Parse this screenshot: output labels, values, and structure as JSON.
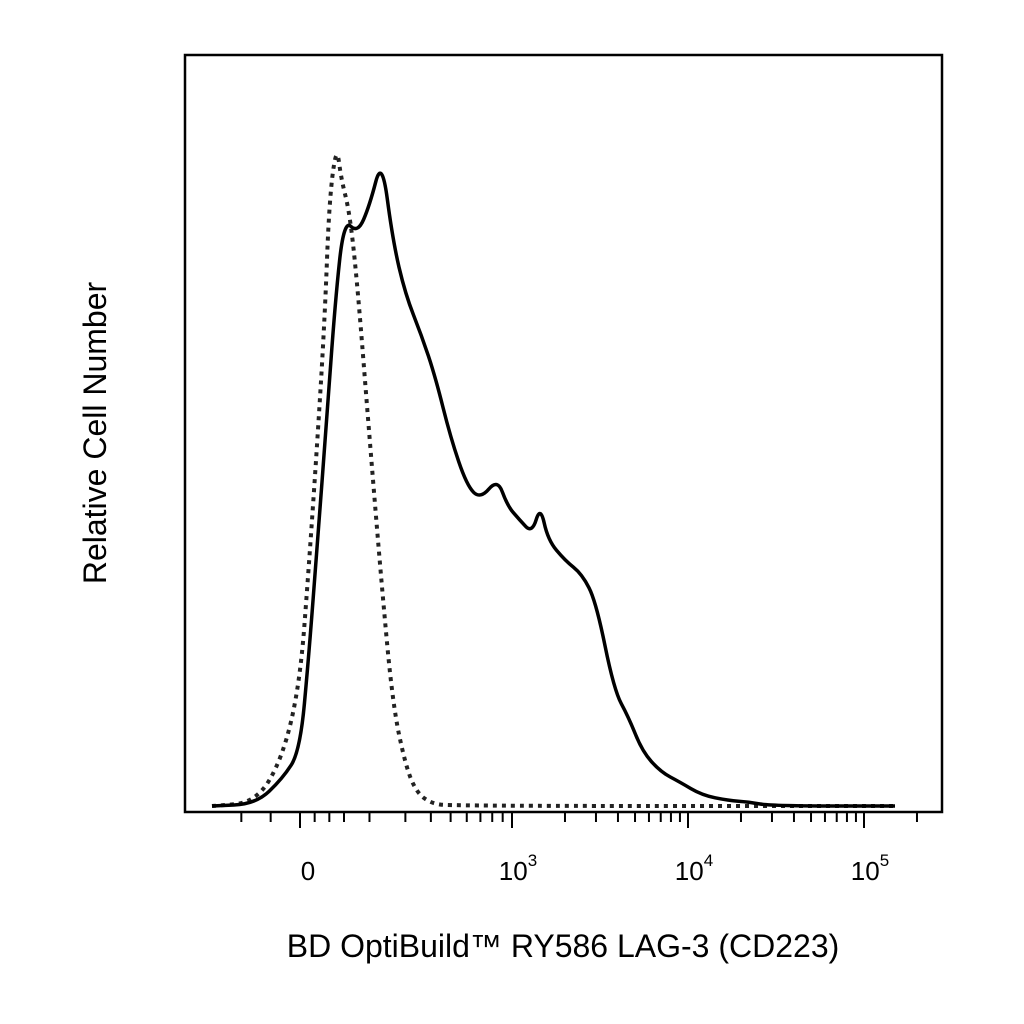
{
  "chart_data": {
    "type": "line",
    "title": "",
    "xlabel": "BD OptiBuild™ RY586 LAG-3 (CD223)",
    "ylabel": "Relative Cell Number",
    "x_scale": "biexponential",
    "xlim": [
      -300,
      150000
    ],
    "ylim": [
      0,
      1
    ],
    "grid": false,
    "legend": "none",
    "x_ticks": [
      {
        "value": 0,
        "base": "0",
        "exp": ""
      },
      {
        "value": 1000,
        "base": "10",
        "exp": "3"
      },
      {
        "value": 10000,
        "base": "10",
        "exp": "4"
      },
      {
        "value": 100000,
        "base": "10",
        "exp": "5"
      }
    ],
    "series": [
      {
        "style": "dotted",
        "color": "#222222",
        "points": [
          [
            -300,
            0
          ],
          [
            -150,
            0.005
          ],
          [
            -60,
            0.07
          ],
          [
            0,
            0.18
          ],
          [
            30,
            0.35
          ],
          [
            60,
            0.54
          ],
          [
            85,
            0.72
          ],
          [
            100,
            0.89
          ],
          [
            125,
            0.97
          ],
          [
            140,
            0.92
          ],
          [
            160,
            0.87
          ],
          [
            175,
            0.76
          ],
          [
            200,
            0.54
          ],
          [
            230,
            0.32
          ],
          [
            260,
            0.15
          ],
          [
            300,
            0.06
          ],
          [
            340,
            0.02
          ],
          [
            400,
            0.004
          ],
          [
            500,
            0
          ],
          [
            150000,
            0
          ]
        ]
      },
      {
        "style": "solid",
        "color": "#000000",
        "points": [
          [
            -300,
            0
          ],
          [
            -150,
            0.003
          ],
          [
            -60,
            0.04
          ],
          [
            0,
            0.08
          ],
          [
            30,
            0.22
          ],
          [
            60,
            0.39
          ],
          [
            90,
            0.56
          ],
          [
            120,
            0.74
          ],
          [
            150,
            0.86
          ],
          [
            175,
            0.84
          ],
          [
            200,
            0.88
          ],
          [
            230,
            0.95
          ],
          [
            260,
            0.83
          ],
          [
            300,
            0.75
          ],
          [
            360,
            0.69
          ],
          [
            420,
            0.63
          ],
          [
            500,
            0.54
          ],
          [
            600,
            0.47
          ],
          [
            700,
            0.45
          ],
          [
            850,
            0.48
          ],
          [
            950,
            0.44
          ],
          [
            1100,
            0.42
          ],
          [
            1300,
            0.4
          ],
          [
            1450,
            0.44
          ],
          [
            1600,
            0.39
          ],
          [
            2000,
            0.36
          ],
          [
            2500,
            0.34
          ],
          [
            3000,
            0.3
          ],
          [
            3800,
            0.17
          ],
          [
            4600,
            0.13
          ],
          [
            5500,
            0.08
          ],
          [
            7000,
            0.05
          ],
          [
            9000,
            0.035
          ],
          [
            12000,
            0.016
          ],
          [
            17000,
            0.008
          ],
          [
            22000,
            0.006
          ],
          [
            30000,
            0
          ],
          [
            150000,
            0
          ]
        ]
      }
    ]
  }
}
